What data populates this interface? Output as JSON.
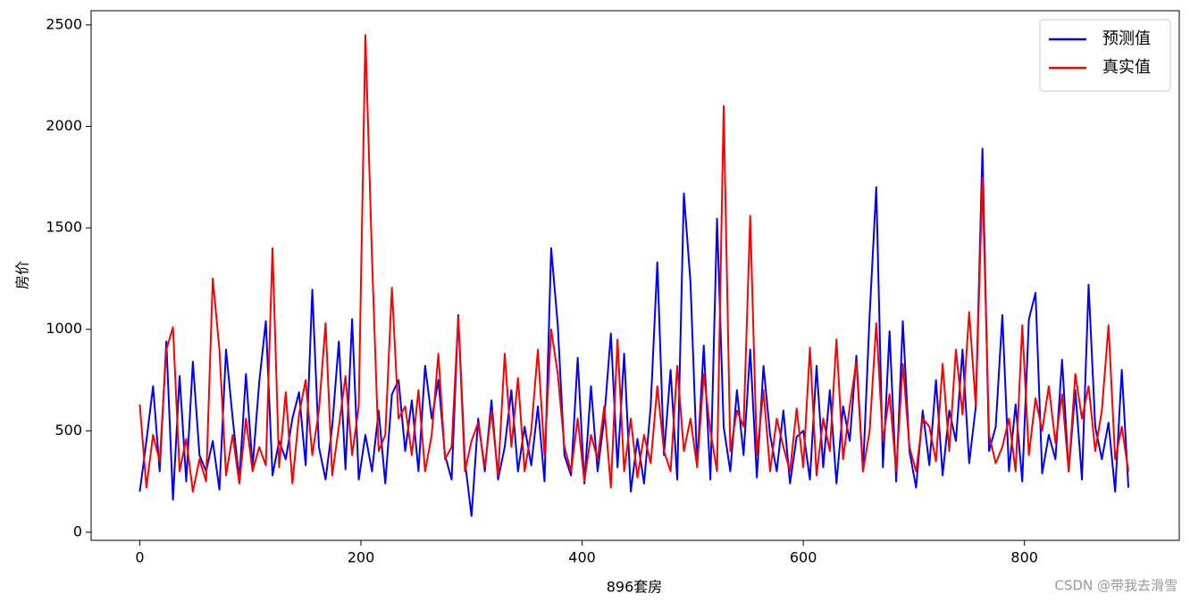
{
  "chart_data": {
    "type": "line",
    "xlabel": "896套房",
    "ylabel": "房价",
    "watermark": "CSDN @带我去滑雪",
    "legend": "upper right",
    "xlim": [
      -44,
      940
    ],
    "ylim": [
      -40,
      2570
    ],
    "xticks": [
      0,
      200,
      400,
      600,
      800
    ],
    "yticks": [
      0,
      500,
      1000,
      1500,
      2000,
      2500
    ],
    "x": [
      0,
      6,
      12,
      18,
      24,
      30,
      36,
      42,
      48,
      54,
      60,
      66,
      72,
      78,
      84,
      90,
      96,
      102,
      108,
      114,
      120,
      126,
      132,
      138,
      144,
      150,
      156,
      162,
      168,
      174,
      180,
      186,
      192,
      198,
      204,
      210,
      216,
      222,
      228,
      234,
      240,
      246,
      252,
      258,
      264,
      270,
      276,
      282,
      288,
      294,
      300,
      306,
      312,
      318,
      324,
      330,
      336,
      342,
      348,
      354,
      360,
      366,
      372,
      378,
      384,
      390,
      396,
      402,
      408,
      414,
      420,
      426,
      432,
      438,
      444,
      450,
      456,
      462,
      468,
      474,
      480,
      486,
      492,
      498,
      504,
      510,
      516,
      522,
      528,
      534,
      540,
      546,
      552,
      558,
      564,
      570,
      576,
      582,
      588,
      594,
      600,
      606,
      612,
      618,
      624,
      630,
      636,
      642,
      648,
      654,
      660,
      666,
      672,
      678,
      684,
      690,
      696,
      702,
      708,
      714,
      720,
      726,
      732,
      738,
      744,
      750,
      756,
      762,
      768,
      774,
      780,
      786,
      792,
      798,
      804,
      810,
      816,
      822,
      828,
      834,
      840,
      846,
      852,
      858,
      864,
      870,
      876,
      882,
      888,
      894
    ],
    "series": [
      {
        "name": "预测值",
        "color": "#0000ff",
        "values": [
          200,
          450,
          720,
          300,
          940,
          160,
          770,
          250,
          840,
          380,
          300,
          450,
          210,
          900,
          560,
          260,
          780,
          320,
          740,
          1040,
          280,
          450,
          360,
          560,
          690,
          330,
          1195,
          420,
          260,
          520,
          940,
          310,
          1050,
          260,
          480,
          300,
          600,
          240,
          680,
          750,
          400,
          650,
          300,
          820,
          560,
          750,
          380,
          260,
          1070,
          350,
          80,
          560,
          300,
          650,
          260,
          420,
          700,
          300,
          520,
          330,
          620,
          250,
          1400,
          1020,
          380,
          280,
          860,
          240,
          720,
          300,
          560,
          980,
          320,
          880,
          200,
          460,
          240,
          620,
          1330,
          380,
          800,
          260,
          1670,
          1230,
          330,
          920,
          260,
          1545,
          520,
          300,
          700,
          380,
          900,
          270,
          820,
          480,
          300,
          600,
          240,
          470,
          500,
          260,
          820,
          320,
          700,
          240,
          620,
          450,
          870,
          300,
          1070,
          1700,
          320,
          990,
          250,
          1040,
          400,
          220,
          600,
          330,
          750,
          280,
          600,
          450,
          900,
          340,
          620,
          1890,
          400,
          520,
          1070,
          300,
          630,
          250,
          1050,
          1180,
          290,
          480,
          360,
          850,
          300,
          700,
          260,
          1220,
          520,
          360,
          540,
          200,
          800,
          220
        ]
      },
      {
        "name": "真实值",
        "color": "#ff0000",
        "values": [
          630,
          220,
          480,
          350,
          900,
          1010,
          300,
          460,
          200,
          360,
          250,
          1250,
          900,
          280,
          480,
          240,
          560,
          300,
          420,
          330,
          1400,
          320,
          690,
          240,
          580,
          750,
          380,
          600,
          1030,
          280,
          520,
          770,
          380,
          620,
          2450,
          1350,
          400,
          480,
          1205,
          560,
          620,
          380,
          700,
          300,
          480,
          880,
          360,
          420,
          1060,
          300,
          450,
          540,
          320,
          600,
          280,
          880,
          420,
          760,
          300,
          500,
          900,
          380,
          1000,
          780,
          420,
          300,
          560,
          250,
          480,
          360,
          620,
          220,
          950,
          300,
          560,
          270,
          480,
          340,
          720,
          400,
          300,
          820,
          400,
          560,
          320,
          780,
          500,
          300,
          2100,
          400,
          600,
          520,
          1560,
          380,
          700,
          300,
          560,
          420,
          300,
          610,
          320,
          910,
          280,
          560,
          400,
          950,
          360,
          620,
          840,
          300,
          500,
          1030,
          450,
          680,
          300,
          830,
          420,
          300,
          560,
          520,
          350,
          830,
          400,
          900,
          580,
          1085,
          620,
          1745,
          480,
          340,
          420,
          560,
          300,
          1020,
          380,
          660,
          500,
          720,
          440,
          680,
          300,
          780,
          560,
          720,
          400,
          600,
          1020,
          360,
          520,
          300
        ]
      }
    ]
  }
}
